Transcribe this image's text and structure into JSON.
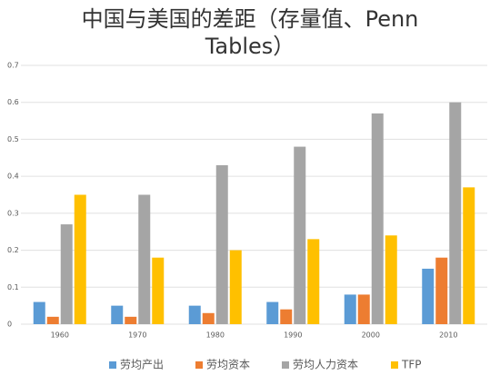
{
  "chart_data": {
    "type": "bar",
    "title": "中国与美国的差距（存量值、Penn Tables）",
    "categories": [
      "1960",
      "1970",
      "1980",
      "1990",
      "2000",
      "2010"
    ],
    "series": [
      {
        "name": "劳均产出",
        "color": "#5b9bd5",
        "values": [
          0.06,
          0.05,
          0.05,
          0.06,
          0.08,
          0.15
        ]
      },
      {
        "name": "劳均资本",
        "color": "#ed7d31",
        "values": [
          0.02,
          0.02,
          0.03,
          0.04,
          0.08,
          0.18
        ]
      },
      {
        "name": "劳均人力资本",
        "color": "#a5a5a5",
        "values": [
          0.27,
          0.35,
          0.43,
          0.48,
          0.57,
          0.6
        ]
      },
      {
        "name": "TFP",
        "color": "#ffc000",
        "values": [
          0.35,
          0.18,
          0.2,
          0.23,
          0.24,
          0.37
        ]
      }
    ],
    "ylim": [
      0,
      0.7
    ],
    "yticks": [
      0,
      0.1,
      0.2,
      0.3,
      0.4,
      0.5,
      0.6,
      0.7
    ],
    "grid": true,
    "legend": "bottom"
  }
}
